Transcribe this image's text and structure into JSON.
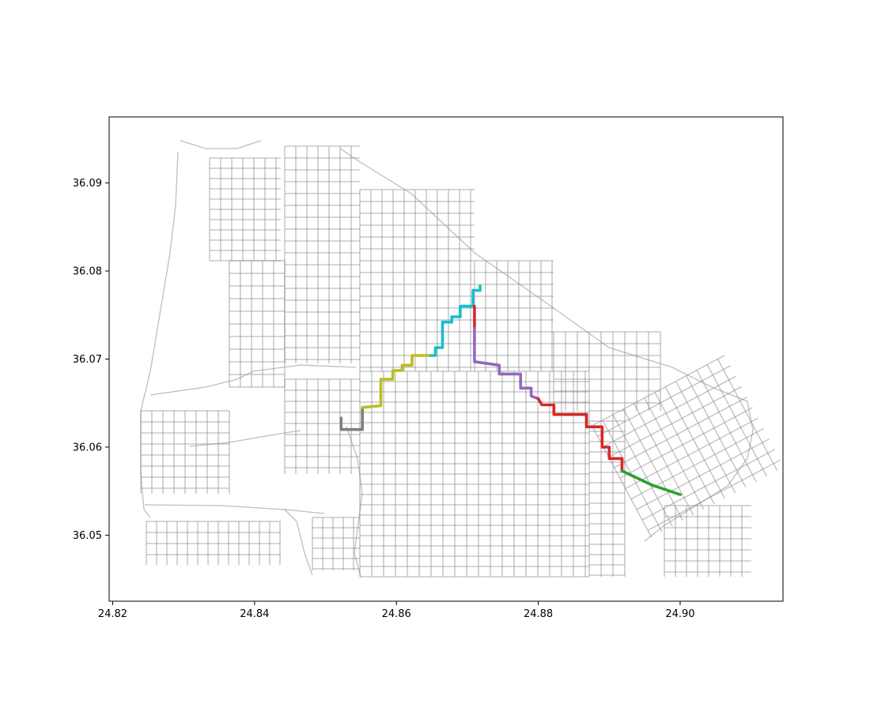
{
  "chart_data": {
    "type": "line",
    "title": "",
    "xlabel": "",
    "ylabel": "",
    "xlim": [
      24.8195,
      24.9145
    ],
    "ylim": [
      36.0425,
      36.0975
    ],
    "grid": false,
    "legend": "none",
    "x_ticks": [
      {
        "value": 24.82,
        "label": "24.82"
      },
      {
        "value": 24.84,
        "label": "24.84"
      },
      {
        "value": 24.86,
        "label": "24.86"
      },
      {
        "value": 24.88,
        "label": "24.88"
      },
      {
        "value": 24.9,
        "label": "24.90"
      }
    ],
    "y_ticks": [
      {
        "value": 36.05,
        "label": "36.05"
      },
      {
        "value": 36.06,
        "label": "36.06"
      },
      {
        "value": 36.07,
        "label": "36.07"
      },
      {
        "value": 36.08,
        "label": "36.08"
      },
      {
        "value": 36.09,
        "label": "36.09"
      }
    ],
    "network_color": "#888888",
    "series": [
      {
        "color": "#7f7f7f",
        "points": [
          [
            24.8522,
            36.0633
          ],
          [
            24.8522,
            36.062
          ],
          [
            24.8552,
            36.062
          ],
          [
            24.8552,
            36.0645
          ]
        ]
      },
      {
        "color": "#bcbd22",
        "points": [
          [
            24.8552,
            36.0645
          ],
          [
            24.8578,
            36.0647
          ],
          [
            24.8578,
            36.0677
          ],
          [
            24.8595,
            36.0677
          ],
          [
            24.8595,
            36.0687
          ],
          [
            24.8608,
            36.0687
          ],
          [
            24.8608,
            36.0693
          ],
          [
            24.8622,
            36.0693
          ],
          [
            24.8622,
            36.0704
          ],
          [
            24.8648,
            36.0704
          ]
        ]
      },
      {
        "color": "#17becf",
        "points": [
          [
            24.8648,
            36.0704
          ],
          [
            24.8655,
            36.0704
          ],
          [
            24.8655,
            36.0713
          ],
          [
            24.8665,
            36.0713
          ],
          [
            24.8665,
            36.0742
          ],
          [
            24.8678,
            36.0742
          ],
          [
            24.8678,
            36.0748
          ],
          [
            24.869,
            36.0748
          ],
          [
            24.869,
            36.076
          ],
          [
            24.8708,
            36.076
          ],
          [
            24.8708,
            36.0778
          ],
          [
            24.8718,
            36.0778
          ],
          [
            24.8718,
            36.0783
          ]
        ]
      },
      {
        "color": "#d62728",
        "points": [
          [
            24.871,
            36.076
          ],
          [
            24.871,
            36.0735
          ]
        ]
      },
      {
        "color": "#9467bd",
        "points": [
          [
            24.871,
            36.0735
          ],
          [
            24.871,
            36.0697
          ],
          [
            24.8745,
            36.0693
          ],
          [
            24.8745,
            36.0683
          ],
          [
            24.8775,
            36.0683
          ],
          [
            24.8775,
            36.0667
          ],
          [
            24.879,
            36.0667
          ],
          [
            24.879,
            36.0658
          ],
          [
            24.88,
            36.0655
          ]
        ]
      },
      {
        "color": "#d62728",
        "points": [
          [
            24.88,
            36.0655
          ],
          [
            24.8805,
            36.0648
          ],
          [
            24.8822,
            36.0648
          ],
          [
            24.8822,
            36.0637
          ],
          [
            24.8868,
            36.0637
          ],
          [
            24.8868,
            36.0623
          ],
          [
            24.889,
            36.0623
          ],
          [
            24.889,
            36.06
          ],
          [
            24.89,
            36.06
          ],
          [
            24.89,
            36.0587
          ],
          [
            24.8918,
            36.0587
          ],
          [
            24.8918,
            36.0573
          ]
        ]
      },
      {
        "color": "#2ca02c",
        "points": [
          [
            24.8918,
            36.0573
          ],
          [
            24.896,
            36.0557
          ],
          [
            24.9,
            36.0546
          ]
        ]
      }
    ]
  }
}
